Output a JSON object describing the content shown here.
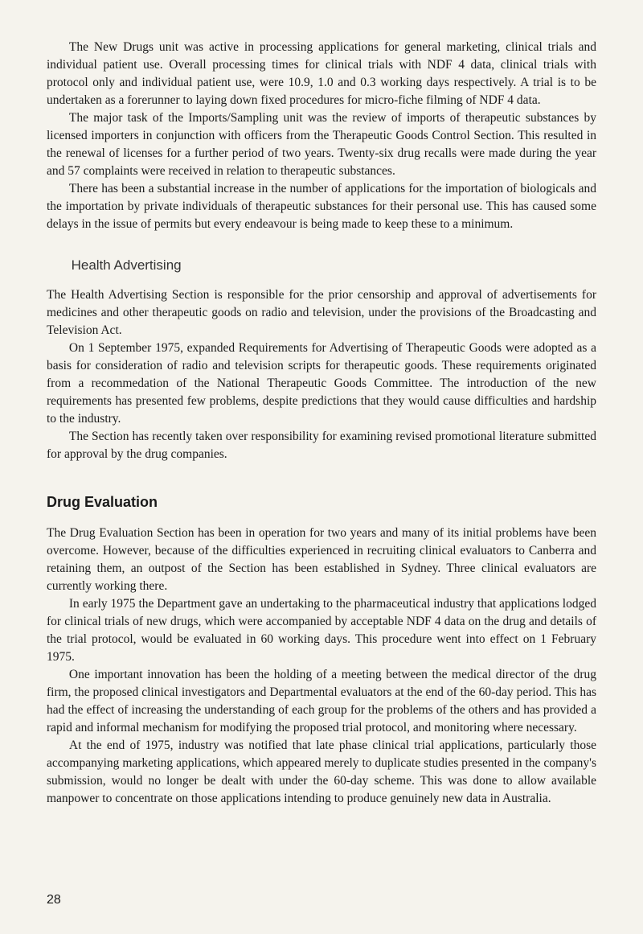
{
  "paragraphs": {
    "p1": "The New Drugs unit was active in processing applications for general marketing, clinical trials and individual patient use. Overall processing times for clinical trials with NDF 4 data, clinical trials with protocol only and individual patient use, were 10.9, 1.0 and 0.3 working days respectively. A trial is to be undertaken as a forerunner to laying down fixed procedures for micro-fiche filming of NDF 4 data.",
    "p2": "The major task of the Imports/Sampling unit was the review of imports of therapeutic substances by licensed importers in conjunction with officers from the Therapeutic Goods Control Section. This resulted in the renewal of licenses for a further period of two years. Twenty-six drug recalls were made during the year and 57 complaints were received in relation to therapeutic substances.",
    "p3": "There has been a substantial increase in the number of applications for the importation of biologicals and the importation by private individuals of therapeutic substances for their personal use. This has caused some delays in the issue of permits but every endeavour is being made to keep these to a minimum."
  },
  "health_advertising": {
    "heading": "Health Advertising",
    "p1": "The Health Advertising Section is responsible for the prior censorship and approval of advertisements for medicines and other therapeutic goods on radio and television, under the provisions of the Broadcasting and Television Act.",
    "p2": "On 1 September 1975, expanded Requirements for Advertising of Therapeutic Goods were adopted as a basis for consideration of radio and television scripts for therapeutic goods. These requirements originated from a recommedation of the National Therapeutic Goods Committee. The introduction of the new requirements has presented few problems, despite predictions that they would cause difficulties and hardship to the industry.",
    "p3": "The Section has recently taken over responsibility for examining revised promotional literature submitted for approval by the drug companies."
  },
  "drug_evaluation": {
    "heading": "Drug Evaluation",
    "p1": "The Drug Evaluation Section has been in operation for two years and many of its initial problems have been overcome. However, because of the difficulties experienced in recruiting clinical evaluators to Canberra and retaining them, an outpost of the Section has been established in Sydney. Three clinical evaluators are currently working there.",
    "p2": "In early 1975 the Department gave an undertaking to the pharmaceutical industry that applications lodged for clinical trials of new drugs, which were accompanied by acceptable NDF 4 data on the drug and details of the trial protocol, would be evaluated in 60 working days. This procedure went into effect on 1 February 1975.",
    "p3": "One important innovation has been the holding of a meeting between the medical director of the drug firm, the proposed clinical investigators and Departmental evaluators at the end of the 60-day period. This has had the effect of increasing the understanding of each group for the problems of the others and has provided a rapid and informal mechanism for modifying the proposed trial protocol, and monitoring where necessary.",
    "p4": "At the end of 1975, industry was notified that late phase clinical trial applications, particularly those accompanying marketing applications, which appeared merely to duplicate studies presented in the company's submission, would no longer be dealt with under the 60-day scheme. This was done to allow available manpower to concentrate on those applications intending to produce genuinely new data in Australia."
  },
  "page_number": "28"
}
